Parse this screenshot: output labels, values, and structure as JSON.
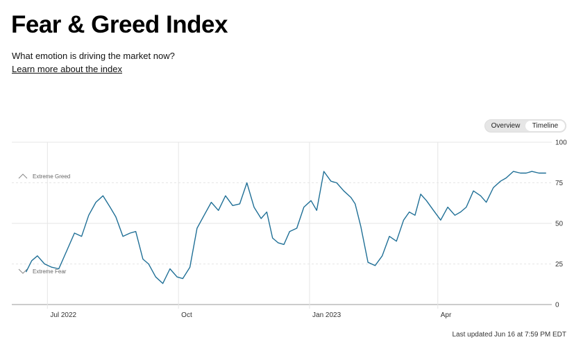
{
  "header": {
    "title": "Fear & Greed Index",
    "subtitle": "What emotion is driving the market now?",
    "learn_more": "Learn more about the index"
  },
  "toggle": {
    "options": [
      "Overview",
      "Timeline"
    ],
    "selected": "Timeline"
  },
  "footer": {
    "last_updated": "Last updated Jun 16 at 7:59 PM EDT"
  },
  "colors": {
    "line": "#1f6f96",
    "grid": "#e5e5e5",
    "axis": "#999999"
  },
  "chart_data": {
    "type": "line",
    "ylim": [
      0,
      100
    ],
    "yticks": [
      0,
      25,
      50,
      75,
      100
    ],
    "xticks": [
      "Jul 2022",
      "Oct",
      "Jan 2023",
      "Apr"
    ],
    "zones": {
      "extreme_greed": "Extreme Greed",
      "extreme_fear": "Extreme Fear"
    },
    "x": [
      "2022-06-16",
      "2022-06-20",
      "2022-06-24",
      "2022-06-29",
      "2022-07-04",
      "2022-07-09",
      "2022-07-15",
      "2022-07-20",
      "2022-07-25",
      "2022-07-30",
      "2022-08-04",
      "2022-08-09",
      "2022-08-14",
      "2022-08-18",
      "2022-08-23",
      "2022-08-28",
      "2022-09-01",
      "2022-09-06",
      "2022-09-10",
      "2022-09-15",
      "2022-09-20",
      "2022-09-25",
      "2022-09-30",
      "2022-10-04",
      "2022-10-09",
      "2022-10-14",
      "2022-10-19",
      "2022-10-24",
      "2022-10-29",
      "2022-11-03",
      "2022-11-08",
      "2022-11-13",
      "2022-11-18",
      "2022-11-23",
      "2022-11-28",
      "2022-12-02",
      "2022-12-06",
      "2022-12-10",
      "2022-12-14",
      "2022-12-18",
      "2022-12-23",
      "2022-12-28",
      "2023-01-02",
      "2023-01-06",
      "2023-01-11",
      "2023-01-16",
      "2023-01-20",
      "2023-01-25",
      "2023-01-30",
      "2023-02-02",
      "2023-02-06",
      "2023-02-11",
      "2023-02-16",
      "2023-02-21",
      "2023-02-26",
      "2023-03-03",
      "2023-03-08",
      "2023-03-12",
      "2023-03-16",
      "2023-03-20",
      "2023-03-24",
      "2023-03-29",
      "2023-04-03",
      "2023-04-08",
      "2023-04-13",
      "2023-04-17",
      "2023-04-21",
      "2023-04-26",
      "2023-05-01",
      "2023-05-05",
      "2023-05-10",
      "2023-05-15",
      "2023-05-19",
      "2023-05-24",
      "2023-05-29",
      "2023-06-02",
      "2023-06-06",
      "2023-06-11",
      "2023-06-16"
    ],
    "values": [
      20,
      27,
      30,
      25,
      23,
      22,
      34,
      44,
      42,
      55,
      63,
      67,
      60,
      54,
      42,
      44,
      45,
      28,
      25,
      17,
      13,
      22,
      17,
      16,
      23,
      47,
      55,
      63,
      58,
      67,
      61,
      62,
      75,
      60,
      53,
      57,
      41,
      38,
      37,
      45,
      47,
      60,
      64,
      58,
      82,
      76,
      75,
      70,
      66,
      62,
      48,
      26,
      24,
      30,
      42,
      39,
      52,
      57,
      55,
      68,
      64,
      58,
      52,
      60,
      55,
      57,
      60,
      70,
      67,
      63,
      72,
      76,
      78,
      82,
      81,
      81,
      82,
      81,
      81
    ]
  }
}
